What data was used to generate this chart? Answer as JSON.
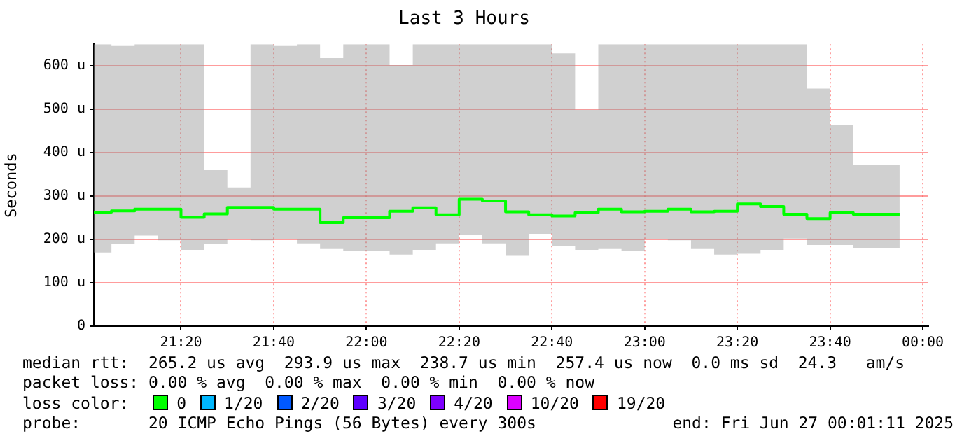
{
  "chart_data": {
    "type": "step",
    "title": "Last 3 Hours",
    "ylabel": "Seconds",
    "legend_title": "loss color:",
    "legend": "bottom",
    "grid": true,
    "marker": "none",
    "x": [
      21.02,
      21.0833,
      21.1667,
      21.25,
      21.3333,
      21.4167,
      21.5,
      21.5833,
      21.6667,
      21.75,
      21.8333,
      21.9167,
      22,
      22.0833,
      22.1667,
      22.25,
      22.3333,
      22.4167,
      22.5,
      22.5833,
      22.6667,
      22.75,
      22.8333,
      22.9167,
      23,
      23.0833,
      23.1667,
      23.25,
      23.3333,
      23.4167,
      23.5,
      23.5833,
      23.6667,
      23.75,
      23.8333,
      23.9167
    ],
    "xlim": [
      21.02,
      24.02
    ],
    "xticks": [
      {
        "value": 21.3333,
        "label": "21:20"
      },
      {
        "value": 21.6667,
        "label": "21:40"
      },
      {
        "value": 22,
        "label": "22:00"
      },
      {
        "value": 22.3333,
        "label": "22:20"
      },
      {
        "value": 22.6667,
        "label": "22:40"
      },
      {
        "value": 23,
        "label": "23:00"
      },
      {
        "value": 23.3333,
        "label": "23:20"
      },
      {
        "value": 23.6667,
        "label": "23:40"
      },
      {
        "value": 24,
        "label": "00:00"
      }
    ],
    "ylim": [
      0,
      650
    ],
    "yticks": [
      {
        "value": 0,
        "label": "0"
      },
      {
        "value": 100,
        "label": "100 u"
      },
      {
        "value": 200,
        "label": "200 u"
      },
      {
        "value": 300,
        "label": "300 u"
      },
      {
        "value": 400,
        "label": "400 u"
      },
      {
        "value": 500,
        "label": "500 u"
      },
      {
        "value": 600,
        "label": "600 u"
      }
    ],
    "series": [
      {
        "name": "0",
        "color": "#00ff00",
        "values": [
          264,
          263,
          266,
          270,
          270,
          251,
          259,
          274,
          274,
          270,
          270,
          239,
          250,
          250,
          265,
          273,
          257,
          293,
          289,
          264,
          257,
          254,
          262,
          270,
          264,
          265,
          270,
          264,
          265,
          282,
          276,
          258,
          248,
          262,
          258,
          258
        ],
        "lower": [
          194,
          170,
          189,
          209,
          198,
          176,
          190,
          200,
          198,
          200,
          191,
          178,
          173,
          173,
          165,
          176,
          191,
          211,
          191,
          162,
          213,
          184,
          176,
          178,
          173,
          200,
          198,
          178,
          165,
          167,
          176,
          202,
          187,
          187,
          180,
          180
        ],
        "upper": [
          650,
          650,
          646,
          650,
          650,
          650,
          360,
          320,
          650,
          646,
          650,
          618,
          650,
          650,
          602,
          650,
          650,
          650,
          650,
          650,
          650,
          629,
          499,
          650,
          650,
          650,
          650,
          650,
          650,
          650,
          650,
          650,
          548,
          463,
          372,
          372
        ]
      },
      {
        "name": "1/20",
        "color": "#00b8ff",
        "values": [
          null,
          null,
          null,
          null,
          null,
          null,
          null,
          null,
          null,
          null,
          null,
          null,
          null,
          null,
          null,
          null,
          null,
          null,
          null,
          null,
          null,
          null,
          null,
          null,
          null,
          null,
          null,
          null,
          null,
          null,
          null,
          null,
          null,
          null,
          null,
          null
        ]
      },
      {
        "name": "2/20",
        "color": "#0059ff",
        "values": [
          null,
          null,
          null,
          null,
          null,
          null,
          null,
          null,
          null,
          null,
          null,
          null,
          null,
          null,
          null,
          null,
          null,
          null,
          null,
          null,
          null,
          null,
          null,
          null,
          null,
          null,
          null,
          null,
          null,
          null,
          null,
          null,
          null,
          null,
          null,
          null
        ]
      },
      {
        "name": "3/20",
        "color": "#5e00ff",
        "values": [
          null,
          null,
          null,
          null,
          null,
          null,
          null,
          null,
          null,
          null,
          null,
          null,
          null,
          null,
          null,
          null,
          null,
          null,
          null,
          null,
          null,
          null,
          null,
          null,
          null,
          null,
          null,
          null,
          null,
          null,
          null,
          null,
          null,
          null,
          null,
          null
        ]
      },
      {
        "name": "4/20",
        "color": "#7e00ff",
        "values": [
          null,
          null,
          null,
          null,
          null,
          null,
          null,
          null,
          null,
          null,
          null,
          null,
          null,
          null,
          null,
          null,
          null,
          null,
          null,
          null,
          null,
          null,
          null,
          null,
          null,
          null,
          null,
          null,
          null,
          null,
          null,
          null,
          null,
          null,
          null,
          null
        ]
      },
      {
        "name": "10/20",
        "color": "#dd00ff",
        "values": [
          null,
          null,
          null,
          null,
          null,
          null,
          null,
          null,
          null,
          null,
          null,
          null,
          null,
          null,
          null,
          null,
          null,
          null,
          null,
          null,
          null,
          null,
          null,
          null,
          null,
          null,
          null,
          null,
          null,
          null,
          null,
          null,
          null,
          null,
          null,
          null
        ]
      },
      {
        "name": "19/20",
        "color": "#ff0000",
        "values": [
          null,
          null,
          null,
          null,
          null,
          null,
          null,
          null,
          null,
          null,
          null,
          null,
          null,
          null,
          null,
          null,
          null,
          null,
          null,
          null,
          null,
          null,
          null,
          null,
          null,
          null,
          null,
          null,
          null,
          null,
          null,
          null,
          null,
          null,
          null,
          null
        ]
      }
    ],
    "annotations": [
      "median rtt:  265.2 us avg  293.9 us max  238.7 us min  257.4 us now  0.0 ms sd  24.3   am/s",
      "packet loss: 0.00 % avg  0.00 % max  0.00 % min  0.00 % now",
      "probe:       20 ICMP Echo Pings (56 Bytes) every 300s",
      "end: Fri Jun 27 00:01:11 2025"
    ]
  }
}
